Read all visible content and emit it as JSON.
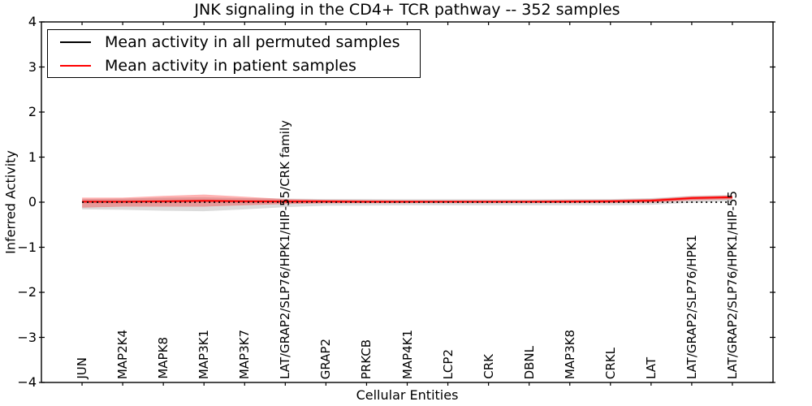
{
  "title": "JNK signaling in the CD4+ TCR pathway -- 352 samples",
  "legend": {
    "items": [
      {
        "label": "Mean activity in all permuted samples",
        "color": "#000000"
      },
      {
        "label": "Mean activity in patient samples",
        "color": "#ff0000"
      }
    ]
  },
  "chart_data": {
    "type": "line",
    "title": "JNK signaling in the CD4+ TCR pathway -- 352 samples",
    "xlabel": "Cellular Entities",
    "ylabel": "Inferred Activity",
    "ylim": [
      -4,
      4
    ],
    "yticks": [
      -4,
      -3,
      -2,
      -1,
      0,
      1,
      2,
      3,
      4
    ],
    "grid": false,
    "legend_position": "upper left",
    "categories": [
      "JUN",
      "MAP2K4",
      "MAPK8",
      "MAP3K1",
      "MAP3K7",
      "LAT/GRAP2/SLP76/HPK1/HIP-55/CRK family",
      "GRAP2",
      "PRKCB",
      "MAP4K1",
      "LCP2",
      "CRK",
      "DBNL",
      "MAP3K8",
      "CRKL",
      "LAT",
      "LAT/GRAP2/SLP76/HPK1",
      "LAT/GRAP2/SLP76/HPK1/HIP-55"
    ],
    "series": [
      {
        "name": "Mean activity in all permuted samples",
        "color": "#000000",
        "style": "dotted",
        "values": [
          0,
          0,
          0,
          0,
          0,
          0,
          0,
          0,
          0,
          0,
          0,
          0,
          0,
          0,
          0,
          0,
          0
        ]
      },
      {
        "name": "Mean activity in patient samples",
        "color": "#ff0000",
        "style": "solid",
        "values": [
          0.01,
          0.01,
          0.02,
          0.03,
          0.02,
          0.015,
          0.015,
          0.01,
          0.01,
          0.01,
          0.01,
          0.01,
          0.015,
          0.02,
          0.035,
          0.09,
          0.11
        ]
      }
    ],
    "bands": [
      {
        "name": "permuted-confidence-band",
        "color": "#888888",
        "opacity": 0.3,
        "upper": [
          0.07,
          0.08,
          0.1,
          0.11,
          0.09,
          0.08,
          0.07,
          0.07,
          0.065,
          0.065,
          0.065,
          0.065,
          0.07,
          0.07,
          0.09,
          0.14,
          0.16
        ],
        "lower": [
          -0.16,
          -0.17,
          -0.19,
          -0.2,
          -0.16,
          -0.11,
          -0.08,
          -0.075,
          -0.07,
          -0.07,
          -0.07,
          -0.07,
          -0.07,
          -0.07,
          -0.06,
          -0.01,
          0.02
        ]
      },
      {
        "name": "patient-confidence-band",
        "color": "#ff0000",
        "opacity": 0.3,
        "upper": [
          0.1,
          0.1,
          0.14,
          0.17,
          0.12,
          0.07,
          0.05,
          0.04,
          0.035,
          0.03,
          0.03,
          0.03,
          0.04,
          0.05,
          0.07,
          0.13,
          0.15
        ],
        "lower": [
          -0.12,
          -0.1,
          -0.1,
          -0.1,
          -0.07,
          -0.04,
          -0.025,
          -0.02,
          -0.02,
          -0.015,
          -0.015,
          -0.015,
          -0.02,
          -0.02,
          -0.01,
          0.04,
          0.06
        ]
      },
      {
        "name": "patient-inner-band",
        "color": "#ee2222",
        "opacity": 0.35,
        "upper": [
          0.04,
          0.04,
          0.05,
          0.06,
          0.05,
          0.045,
          0.045,
          0.04,
          0.04,
          0.04,
          0.04,
          0.04,
          0.045,
          0.05,
          0.065,
          0.12,
          0.14
        ],
        "lower": [
          -0.02,
          -0.02,
          -0.01,
          0.0,
          -0.01,
          -0.015,
          -0.015,
          -0.02,
          -0.02,
          -0.02,
          -0.02,
          -0.02,
          -0.015,
          -0.01,
          0.005,
          0.06,
          0.08
        ]
      }
    ]
  }
}
